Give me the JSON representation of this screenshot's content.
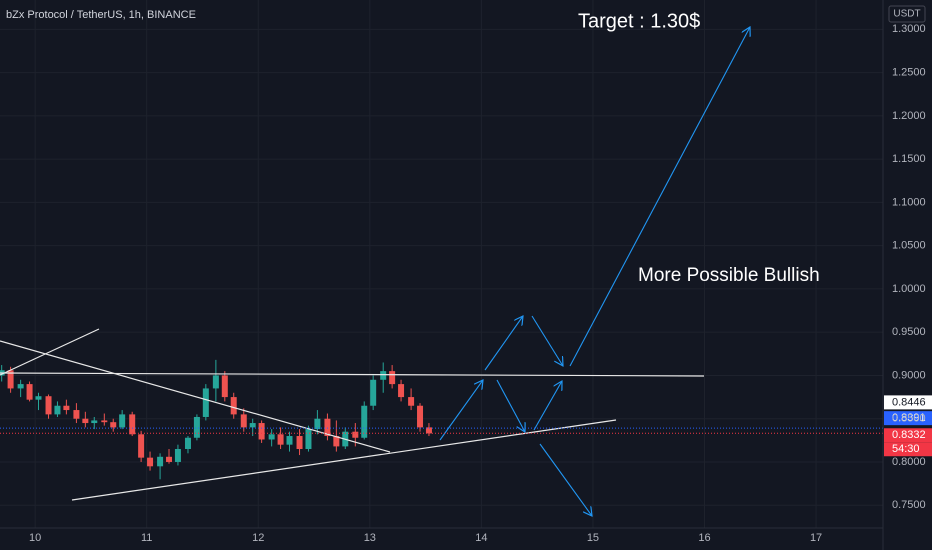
{
  "chart_data": {
    "type": "candlestick",
    "title": "bZx Protocol / TetherUS, 1h, BINANCE",
    "annotations": [
      "Target : 1.30$",
      "More Possible Bullish"
    ],
    "currency": "USDT",
    "up_color": "#26a69a",
    "down_color": "#ef5350",
    "candles": {
      "x": [
        9.7,
        9.78,
        9.87,
        9.95,
        10.03,
        10.12,
        10.2,
        10.28,
        10.37,
        10.45,
        10.53,
        10.62,
        10.7,
        10.78,
        10.87,
        10.95,
        11.03,
        11.12,
        11.2,
        11.28,
        11.37,
        11.45,
        11.53,
        11.62,
        11.7,
        11.78,
        11.87,
        11.95,
        12.03,
        12.12,
        12.2,
        12.28,
        12.37,
        12.45,
        12.53,
        12.62,
        12.7,
        12.78,
        12.87,
        12.95,
        13.03,
        13.12,
        13.2,
        13.28,
        13.37,
        13.45,
        13.53
      ],
      "open": [
        0.9,
        0.906,
        0.885,
        0.89,
        0.872,
        0.876,
        0.855,
        0.865,
        0.86,
        0.85,
        0.845,
        0.848,
        0.846,
        0.84,
        0.855,
        0.832,
        0.805,
        0.795,
        0.806,
        0.8,
        0.815,
        0.828,
        0.852,
        0.885,
        0.9,
        0.875,
        0.855,
        0.84,
        0.845,
        0.826,
        0.832,
        0.82,
        0.83,
        0.815,
        0.838,
        0.85,
        0.83,
        0.818,
        0.835,
        0.828,
        0.865,
        0.895,
        0.905,
        0.89,
        0.875,
        0.865,
        0.84
      ],
      "high": [
        0.912,
        0.91,
        0.895,
        0.893,
        0.88,
        0.878,
        0.87,
        0.872,
        0.868,
        0.858,
        0.852,
        0.856,
        0.85,
        0.86,
        0.858,
        0.836,
        0.812,
        0.81,
        0.815,
        0.82,
        0.83,
        0.855,
        0.89,
        0.918,
        0.905,
        0.88,
        0.862,
        0.85,
        0.848,
        0.838,
        0.84,
        0.835,
        0.838,
        0.842,
        0.86,
        0.856,
        0.848,
        0.84,
        0.845,
        0.87,
        0.9,
        0.915,
        0.912,
        0.895,
        0.885,
        0.868,
        0.845
      ],
      "low": [
        0.893,
        0.88,
        0.875,
        0.87,
        0.86,
        0.85,
        0.852,
        0.855,
        0.845,
        0.84,
        0.838,
        0.842,
        0.835,
        0.838,
        0.83,
        0.8,
        0.79,
        0.78,
        0.798,
        0.796,
        0.81,
        0.825,
        0.848,
        0.87,
        0.87,
        0.85,
        0.835,
        0.83,
        0.822,
        0.818,
        0.815,
        0.812,
        0.808,
        0.812,
        0.832,
        0.825,
        0.812,
        0.815,
        0.818,
        0.826,
        0.86,
        0.88,
        0.885,
        0.87,
        0.86,
        0.835,
        0.83
      ],
      "close": [
        0.906,
        0.885,
        0.89,
        0.872,
        0.876,
        0.855,
        0.865,
        0.86,
        0.85,
        0.845,
        0.848,
        0.846,
        0.84,
        0.855,
        0.832,
        0.805,
        0.795,
        0.806,
        0.8,
        0.815,
        0.828,
        0.852,
        0.885,
        0.9,
        0.875,
        0.855,
        0.84,
        0.845,
        0.826,
        0.832,
        0.82,
        0.83,
        0.815,
        0.838,
        0.85,
        0.83,
        0.818,
        0.835,
        0.828,
        0.865,
        0.895,
        0.905,
        0.89,
        0.875,
        0.865,
        0.84,
        0.833
      ]
    },
    "price_labels": [
      {
        "value": 0.8446,
        "color": "#ffffff",
        "text_color": "#131722"
      },
      {
        "value": 0.8391,
        "color": "#2962ff",
        "text_color": "#ffffff"
      },
      {
        "value": 0.8332,
        "color": "#f23645",
        "text_color": "#ffffff"
      }
    ],
    "countdown": "54:30",
    "xlim": [
      9.685,
      17.6
    ],
    "xticks": [
      10,
      11,
      12,
      13,
      14,
      15,
      16,
      17
    ],
    "ylim": [
      0.7237,
      1.3339
    ],
    "yticks": [
      {
        "value": 0.75,
        "label": "0.7500"
      },
      {
        "value": 0.8,
        "label": "0.8000"
      },
      {
        "value": 0.85,
        "label": "0.8500"
      },
      {
        "value": 0.9,
        "label": "0.9000"
      },
      {
        "value": 0.95,
        "label": "0.9500"
      },
      {
        "value": 1.0,
        "label": "1.0000"
      },
      {
        "value": 1.05,
        "label": "1.0500"
      },
      {
        "value": 1.1,
        "label": "1.1000"
      },
      {
        "value": 1.15,
        "label": "1.1500"
      },
      {
        "value": 1.2,
        "label": "1.2000"
      },
      {
        "value": 1.25,
        "label": "1.2500"
      },
      {
        "value": 1.3,
        "label": "1.3000"
      }
    ],
    "grid": true
  }
}
